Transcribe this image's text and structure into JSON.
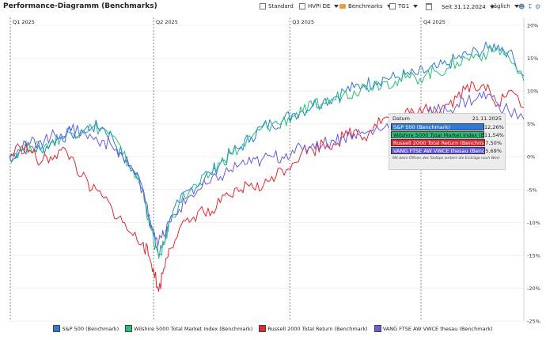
{
  "title": "Performance-Diagramm (Benchmarks)",
  "toolbar": {
    "standard": "Standard",
    "hvpi": "HVPI DE",
    "benchmarks": "Benchmarks",
    "tg1": "TG1",
    "since": "Seit 31.12.2024",
    "interval": "täglich"
  },
  "tooltip": {
    "label": "Datum",
    "date": "21.11.2025",
    "rows": [
      {
        "name": "S&P 500 (Benchmark)",
        "value": "12,26%",
        "color": "#2e7bd6"
      },
      {
        "name": "Wilshire 5000 Total Market Index (Benchmark)",
        "value": "11,54%",
        "color": "#27c07a"
      },
      {
        "name": "Russell 2000 Total Return (Benchmark)",
        "value": "7,50%",
        "color": "#e52630"
      },
      {
        "name": "VANG FTSE AW VWCE thesau (Benchmark)",
        "value": "5,69%",
        "color": "#6a5ce0"
      }
    ],
    "note": "Mit beim Öffnen des Tooltips sortiert die Einträge nach Wert"
  },
  "legend": [
    {
      "name": "S&P 500 (Benchmark)",
      "color": "#2e7bd6"
    },
    {
      "name": "Wilshire 5000 Total Market Index (Benchmark)",
      "color": "#27c07a"
    },
    {
      "name": "Russell 2000 Total Return (Benchmark)",
      "color": "#e52630"
    },
    {
      "name": "VANG FTSE AW VWCE thesau (Benchmark)",
      "color": "#6a5ce0"
    }
  ],
  "chart_data": {
    "type": "line",
    "quarters": [
      "Q1 2025",
      "Q2 2025",
      "Q3 2025",
      "Q4 2025"
    ],
    "ylim": [
      -25,
      20
    ],
    "yticks": [
      -25,
      -20,
      -15,
      -10,
      -5,
      0,
      5,
      10,
      15,
      20
    ],
    "ytick_labels": [
      "-25%",
      "-20%",
      "-15%",
      "-10%",
      "-5%",
      "0%",
      "5%",
      "10%",
      "15%",
      "20%"
    ],
    "x_domain": [
      0,
      1
    ],
    "quarter_x": [
      0.0,
      0.28,
      0.545,
      0.8
    ],
    "series": [
      {
        "name": "S&P 500 (Benchmark)",
        "color": "#2e7bd6",
        "x": [
          0,
          0.02,
          0.04,
          0.06,
          0.08,
          0.1,
          0.12,
          0.14,
          0.16,
          0.18,
          0.2,
          0.22,
          0.24,
          0.26,
          0.27,
          0.28,
          0.29,
          0.3,
          0.31,
          0.33,
          0.35,
          0.37,
          0.39,
          0.41,
          0.43,
          0.45,
          0.47,
          0.49,
          0.51,
          0.53,
          0.55,
          0.57,
          0.59,
          0.61,
          0.63,
          0.65,
          0.67,
          0.69,
          0.71,
          0.73,
          0.75,
          0.77,
          0.79,
          0.81,
          0.83,
          0.85,
          0.87,
          0.89,
          0.91,
          0.93,
          0.95,
          0.97,
          1.0
        ],
        "y": [
          0,
          1,
          1.5,
          1,
          2,
          3,
          3.5,
          4,
          4.5,
          4.5,
          3,
          0,
          -2,
          -5,
          -9,
          -12,
          -15,
          -13,
          -10,
          -7,
          -5,
          -4,
          -2.5,
          -1,
          0.5,
          1.5,
          3,
          4.5,
          5,
          5.5,
          6.5,
          7,
          8,
          8.5,
          9,
          10,
          10.5,
          11,
          11.5,
          12,
          12,
          12.5,
          12.5,
          13,
          13.5,
          14,
          15,
          15.5,
          16,
          16.5,
          17,
          16,
          12.26
        ]
      },
      {
        "name": "Wilshire 5000 Total Market Index (Benchmark)",
        "color": "#27c07a",
        "x": [
          0,
          0.02,
          0.04,
          0.06,
          0.08,
          0.1,
          0.12,
          0.14,
          0.16,
          0.18,
          0.2,
          0.22,
          0.24,
          0.26,
          0.27,
          0.28,
          0.29,
          0.3,
          0.31,
          0.33,
          0.35,
          0.37,
          0.39,
          0.41,
          0.43,
          0.45,
          0.47,
          0.49,
          0.51,
          0.53,
          0.55,
          0.57,
          0.59,
          0.61,
          0.63,
          0.65,
          0.67,
          0.69,
          0.71,
          0.73,
          0.75,
          0.77,
          0.79,
          0.81,
          0.83,
          0.85,
          0.87,
          0.89,
          0.91,
          0.93,
          0.95,
          0.97,
          1.0
        ],
        "y": [
          0,
          1,
          1.7,
          1.2,
          2.2,
          3,
          3.6,
          4.2,
          4.5,
          4.3,
          3.2,
          0.3,
          -2,
          -5.2,
          -9.4,
          -12.6,
          -15.5,
          -13.4,
          -10.2,
          -7,
          -5.2,
          -4.2,
          -2.6,
          -1,
          0.4,
          1.3,
          2.8,
          4.3,
          4.9,
          5.3,
          6.2,
          6.8,
          7.6,
          8.2,
          8.7,
          9.6,
          10,
          10.6,
          11,
          11.4,
          11.5,
          12,
          11.9,
          12.5,
          13,
          13.4,
          14.4,
          15,
          15.5,
          15.8,
          16.4,
          15.3,
          11.54
        ]
      },
      {
        "name": "Russell 2000 Total Return (Benchmark)",
        "color": "#e52630",
        "x": [
          0,
          0.02,
          0.04,
          0.06,
          0.08,
          0.1,
          0.12,
          0.14,
          0.16,
          0.18,
          0.2,
          0.22,
          0.24,
          0.26,
          0.27,
          0.28,
          0.29,
          0.3,
          0.31,
          0.33,
          0.35,
          0.37,
          0.39,
          0.41,
          0.43,
          0.45,
          0.47,
          0.49,
          0.51,
          0.53,
          0.55,
          0.57,
          0.59,
          0.61,
          0.63,
          0.65,
          0.67,
          0.69,
          0.71,
          0.73,
          0.75,
          0.77,
          0.79,
          0.81,
          0.83,
          0.85,
          0.87,
          0.89,
          0.91,
          0.93,
          0.95,
          0.97,
          1.0
        ],
        "y": [
          0,
          1.5,
          1,
          -1,
          0,
          1,
          0,
          -3,
          -5,
          -6,
          -8,
          -10,
          -12,
          -13,
          -15,
          -17,
          -20.5,
          -17,
          -14,
          -11,
          -10,
          -8,
          -9,
          -7,
          -6,
          -5,
          -4,
          -5,
          -3,
          -2,
          -1,
          1,
          1,
          2,
          2,
          3,
          4,
          3,
          5,
          6,
          5,
          7,
          6,
          8,
          7,
          8,
          9,
          11,
          10,
          11,
          8,
          10,
          7.5
        ]
      },
      {
        "name": "VANG FTSE AW VWCE thesau (Benchmark)",
        "color": "#6a5ce0",
        "x": [
          0,
          0.02,
          0.04,
          0.06,
          0.08,
          0.1,
          0.12,
          0.14,
          0.16,
          0.18,
          0.2,
          0.22,
          0.24,
          0.26,
          0.27,
          0.28,
          0.29,
          0.3,
          0.31,
          0.33,
          0.35,
          0.37,
          0.39,
          0.41,
          0.43,
          0.45,
          0.47,
          0.49,
          0.51,
          0.53,
          0.55,
          0.57,
          0.59,
          0.61,
          0.63,
          0.65,
          0.67,
          0.69,
          0.71,
          0.73,
          0.75,
          0.77,
          0.79,
          0.81,
          0.83,
          0.85,
          0.87,
          0.89,
          0.91,
          0.93,
          0.95,
          0.97,
          1.0
        ],
        "y": [
          0,
          1,
          2,
          2.5,
          3,
          3.5,
          4,
          3.5,
          3,
          2.5,
          1.5,
          0,
          -2,
          -5,
          -9,
          -11,
          -13,
          -12,
          -10,
          -8,
          -6,
          -5,
          -4,
          -3,
          -2,
          -1,
          -1,
          -0.5,
          0,
          0,
          1,
          1,
          2,
          2,
          2.5,
          3,
          3.5,
          3.5,
          4,
          4.5,
          5,
          5.5,
          6,
          6.5,
          7,
          7,
          8,
          8.5,
          9,
          9.5,
          8,
          7,
          5.69
        ]
      }
    ]
  }
}
